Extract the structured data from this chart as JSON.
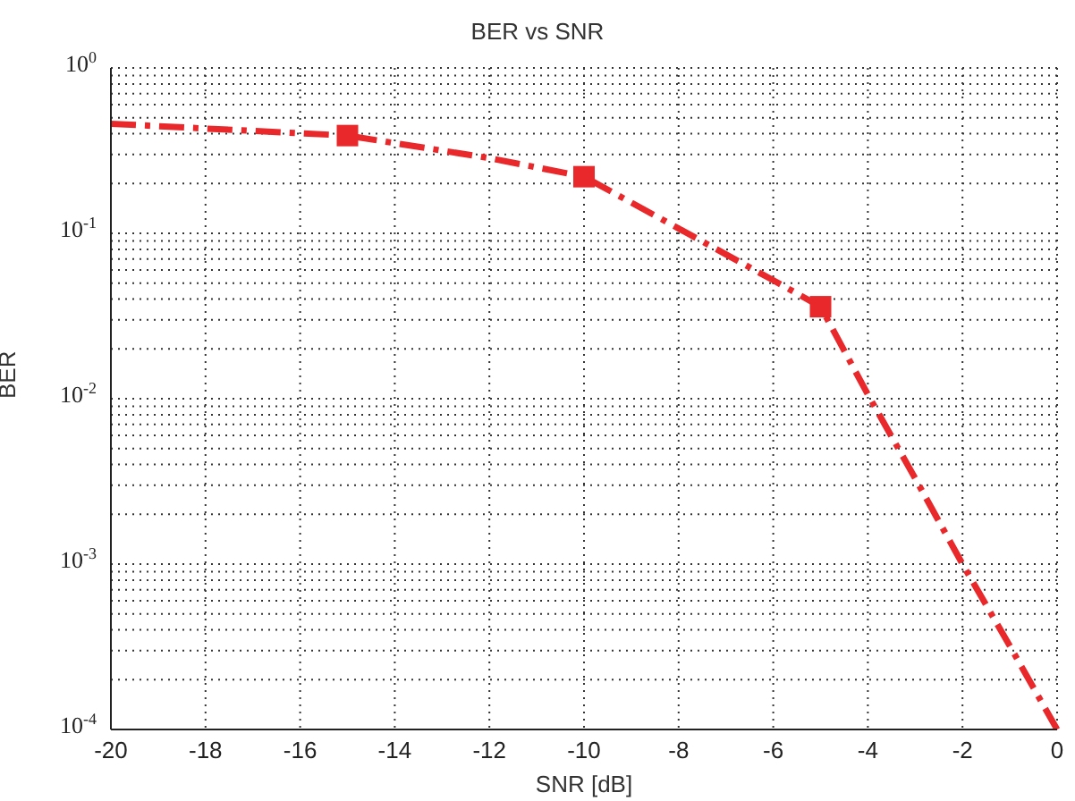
{
  "chart_data": {
    "type": "line",
    "title": "BER vs SNR",
    "xlabel": "SNR [dB]",
    "ylabel": "BER",
    "series": [
      {
        "type": "line",
        "color": "#e8282a",
        "line_style": "dashed",
        "marker": "none",
        "x": [
          -20,
          -18,
          -15,
          -12,
          -10,
          -8,
          -6,
          -5,
          -4,
          -3,
          -2,
          -1,
          0
        ],
        "values": [
          0.46,
          0.43,
          0.39,
          0.285,
          0.22,
          0.107,
          0.052,
          0.036,
          0.0106,
          0.0033,
          0.001,
          0.00032,
          0.0001
        ]
      },
      {
        "type": "scatter",
        "color": "#e8282a",
        "marker": "square",
        "x": [
          -15,
          -10,
          -5
        ],
        "values": [
          0.39,
          0.22,
          0.036
        ]
      }
    ],
    "xlim": [
      -20,
      0
    ],
    "xticks": [
      -20,
      -18,
      -16,
      -14,
      -12,
      -10,
      -8,
      -6,
      -4,
      -2,
      0
    ],
    "ylim": [
      0.0001,
      1
    ],
    "yticks": [
      {
        "value": 0.0001,
        "label": "10$^{-4}$"
      },
      {
        "value": 0.0002,
        "label": null
      },
      {
        "value": 0.0003,
        "label": null
      },
      {
        "value": 0.0004,
        "label": null
      },
      {
        "value": 0.0005,
        "label": null
      },
      {
        "value": 0.0006,
        "label": null
      },
      {
        "value": 0.0007,
        "label": null
      },
      {
        "value": 0.0008,
        "label": null
      },
      {
        "value": 0.0009,
        "label": null
      },
      {
        "value": 0.001,
        "label": "10$^{-3}$"
      },
      {
        "value": 0.002,
        "label": null
      },
      {
        "value": 0.003,
        "label": null
      },
      {
        "value": 0.004,
        "label": null
      },
      {
        "value": 0.005,
        "label": null
      },
      {
        "value": 0.006,
        "label": null
      },
      {
        "value": 0.007,
        "label": null
      },
      {
        "value": 0.008,
        "label": null
      },
      {
        "value": 0.009,
        "label": null
      },
      {
        "value": 0.01,
        "label": "10$^{-2}$"
      },
      {
        "value": 0.02,
        "label": null
      },
      {
        "value": 0.03,
        "label": null
      },
      {
        "value": 0.04,
        "label": null
      },
      {
        "value": 0.05,
        "label": null
      },
      {
        "value": 0.06,
        "label": null
      },
      {
        "value": 0.07,
        "label": null
      },
      {
        "value": 0.08,
        "label": null
      },
      {
        "value": 0.09,
        "label": null
      },
      {
        "value": 0.1,
        "label": "10$^{-1}$"
      },
      {
        "value": 0.2,
        "label": null
      },
      {
        "value": 0.3,
        "label": null
      },
      {
        "value": 0.4,
        "label": null
      },
      {
        "value": 0.5,
        "label": null
      },
      {
        "value": 0.6,
        "label": null
      },
      {
        "value": 0.7,
        "label": null
      },
      {
        "value": 0.8,
        "label": null
      },
      {
        "value": 0.9,
        "label": null
      },
      {
        "value": 1,
        "label": "10$^{0}$"
      }
    ],
    "log": "y",
    "grid": true,
    "legend": false
  }
}
